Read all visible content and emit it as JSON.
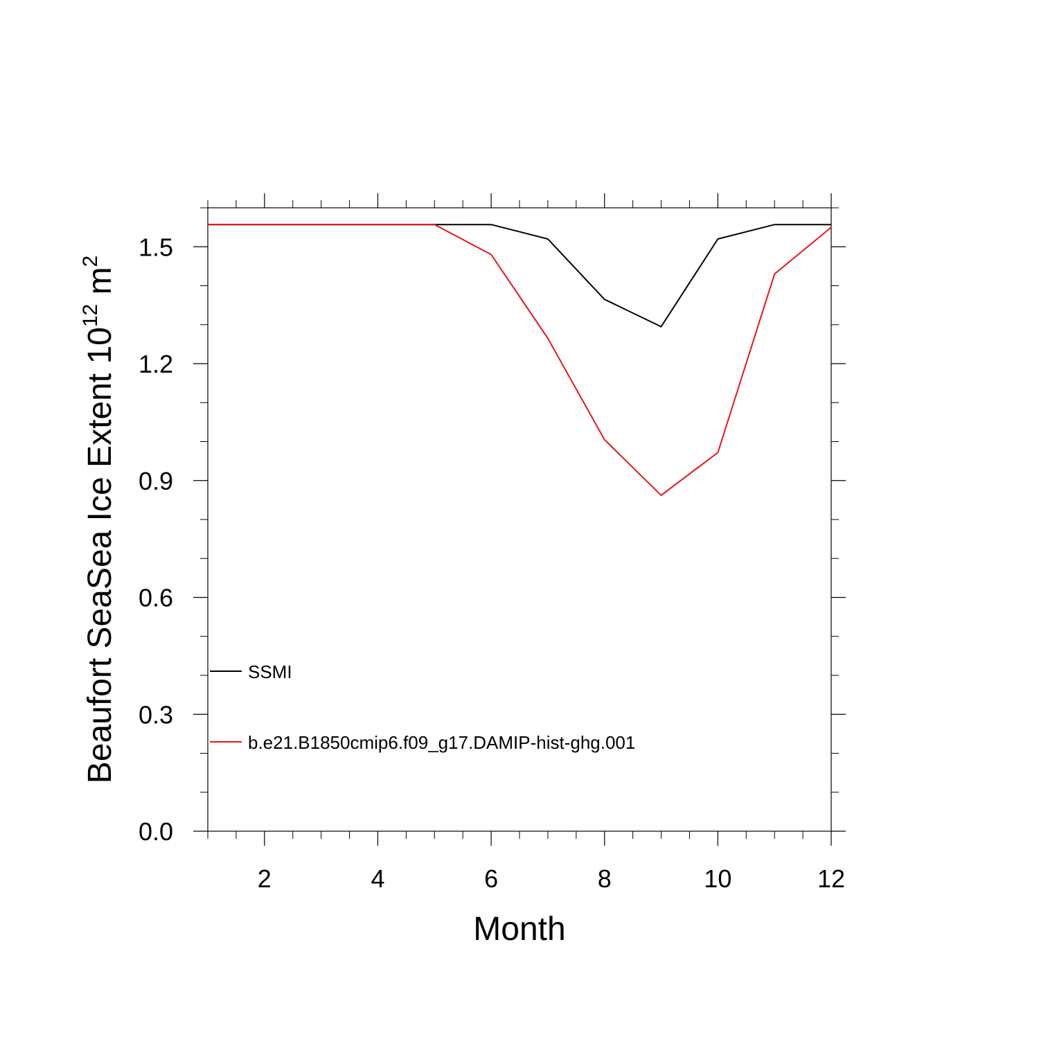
{
  "chart_data": {
    "type": "line",
    "title": "",
    "xlabel": "Month",
    "ylabel": {
      "prefix": "Beaufort SeaSea Ice Extent 10",
      "superscript1": "12",
      "unit": " m",
      "superscript2": "2"
    },
    "xlim": [
      1,
      12
    ],
    "ylim": [
      0.0,
      1.6
    ],
    "x_ticks": [
      2,
      4,
      6,
      8,
      10,
      12
    ],
    "x_tick_labels": [
      "2",
      "4",
      "6",
      "8",
      "10",
      "12"
    ],
    "y_ticks": [
      0.0,
      0.3,
      0.6,
      0.9,
      1.2,
      1.5
    ],
    "y_tick_labels": [
      "0.0",
      "0.3",
      "0.6",
      "0.9",
      "1.2",
      "1.5"
    ],
    "grid": false,
    "legend_position": "lower-left",
    "x": [
      1,
      2,
      3,
      4,
      5,
      6,
      7,
      8,
      9,
      10,
      11,
      12
    ],
    "series": [
      {
        "name": "SSMI",
        "color": "#000000",
        "values": [
          1.557,
          1.557,
          1.557,
          1.557,
          1.557,
          1.557,
          1.52,
          1.365,
          1.295,
          1.52,
          1.557,
          1.557
        ]
      },
      {
        "name": "b.e21.B1850cmip6.f09_g17.DAMIP-hist-ghg.001",
        "color": "#e8141c",
        "values": [
          1.557,
          1.557,
          1.557,
          1.557,
          1.557,
          1.48,
          1.265,
          1.005,
          0.862,
          0.972,
          1.43,
          1.55
        ]
      }
    ]
  }
}
